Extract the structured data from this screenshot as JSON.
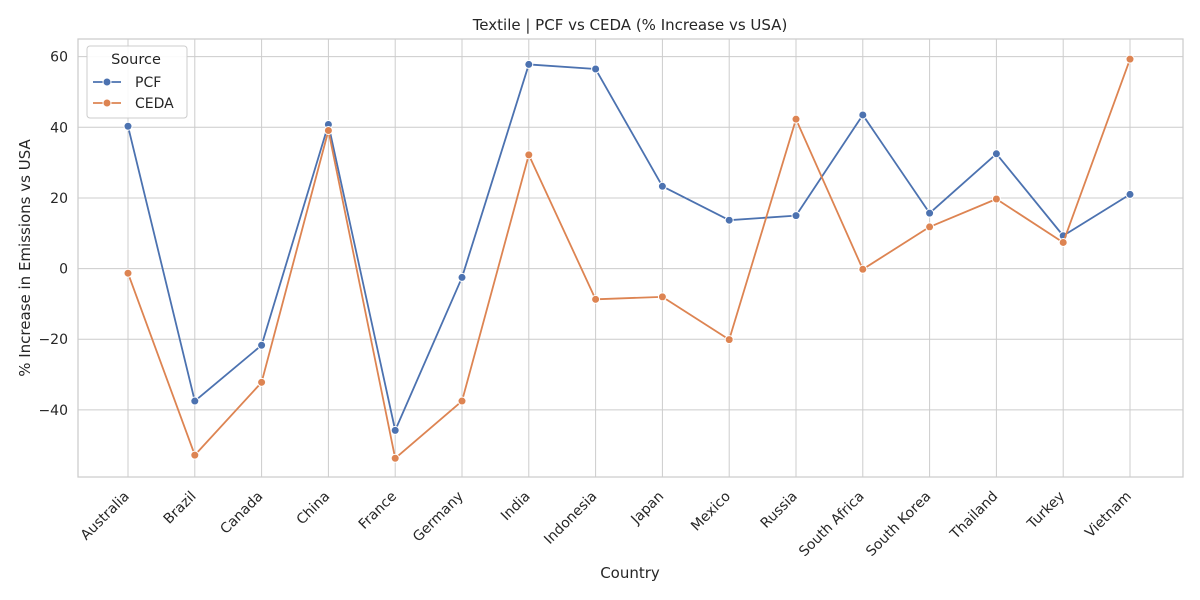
{
  "chart_data": {
    "type": "line",
    "title": "Textile | PCF vs CEDA (% Increase vs USA)",
    "xlabel": "Country",
    "ylabel": "% Increase in Emissions vs USA",
    "categories": [
      "Australia",
      "Brazil",
      "Canada",
      "China",
      "France",
      "Germany",
      "India",
      "Indonesia",
      "Japan",
      "Mexico",
      "Russia",
      "South Africa",
      "South Korea",
      "Thailand",
      "Turkey",
      "Vietnam"
    ],
    "ylim": [
      -59,
      65
    ],
    "yticks": [
      -40,
      -20,
      0,
      20,
      40,
      60
    ],
    "yticklabels": [
      "−40",
      "−20",
      "0",
      "20",
      "40",
      "60"
    ],
    "grid": true,
    "legend": {
      "title": "Source",
      "placement": "top-left"
    },
    "series": [
      {
        "name": "PCF",
        "color": "#4c72b0",
        "values": [
          40.3,
          -37.5,
          -21.7,
          40.8,
          -45.8,
          -2.5,
          57.8,
          56.5,
          23.3,
          13.7,
          15.0,
          43.5,
          15.7,
          32.5,
          9.3,
          21.0
        ]
      },
      {
        "name": "CEDA",
        "color": "#dd8452",
        "values": [
          -1.3,
          -52.8,
          -32.2,
          39.1,
          -53.7,
          -37.5,
          32.2,
          -8.7,
          -8.0,
          -20.1,
          42.3,
          -0.2,
          11.8,
          19.7,
          7.4,
          59.3
        ]
      }
    ]
  }
}
